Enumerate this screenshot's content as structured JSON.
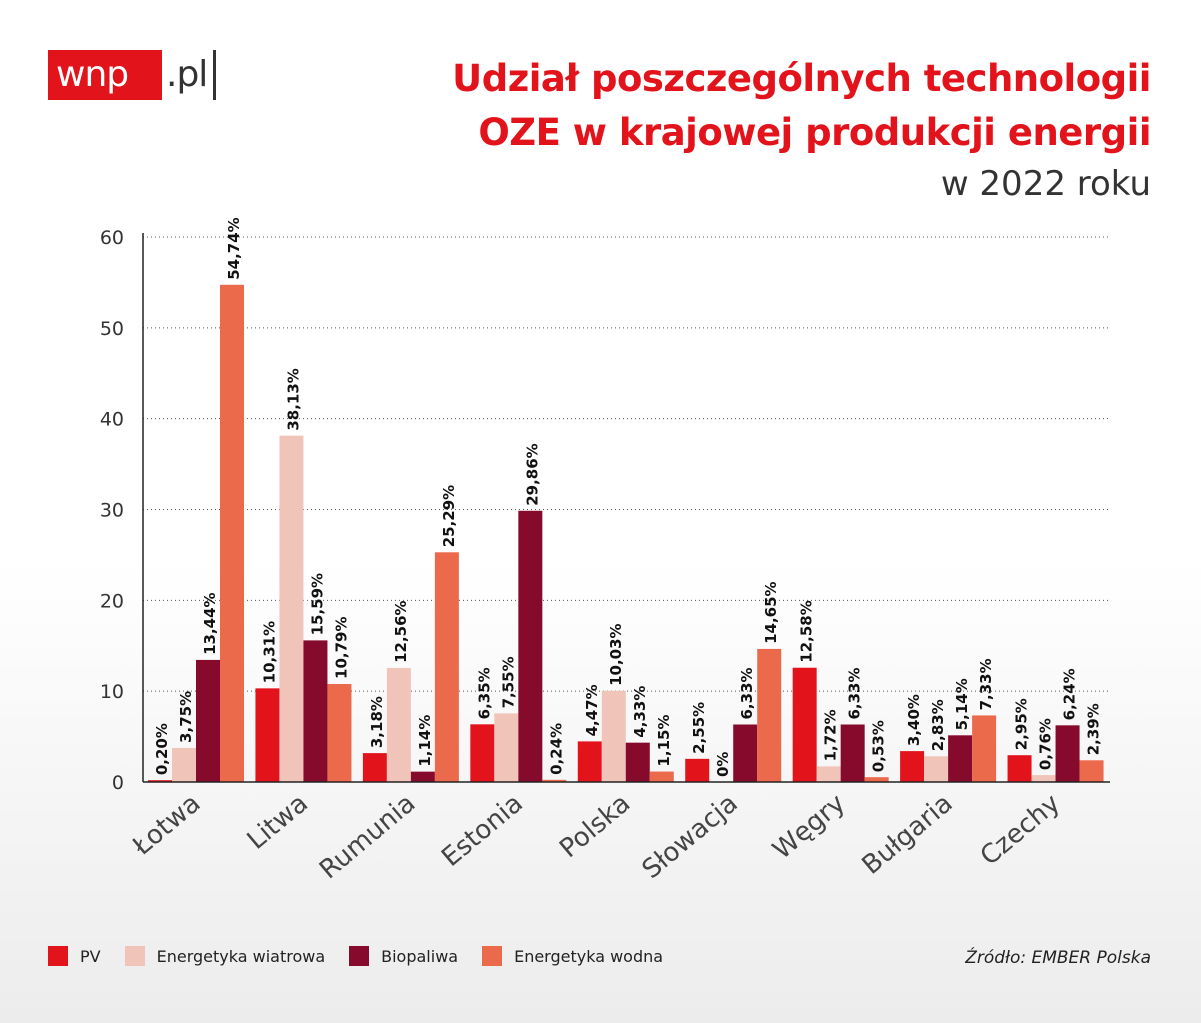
{
  "logo": {
    "brand": "wnp",
    "tld": ".pl"
  },
  "header": {
    "title_line1": "Udział poszczególnych technologii",
    "title_line2": "OZE w krajowej produkcji energii",
    "subtitle": "w 2022 roku"
  },
  "source": "Źródło: EMBER Polska",
  "colors": {
    "PV": "#e3131b",
    "Energetyka wiatrowa": "#f0c4b9",
    "Biopaliwa": "#850a2c",
    "Energetyka wodna": "#ec6a4c"
  },
  "chart_data": {
    "type": "bar",
    "categories": [
      "Łotwa",
      "Litwa",
      "Rumunia",
      "Estonia",
      "Polska",
      "Słowacja",
      "Węgry",
      "Bułgaria",
      "Czechy"
    ],
    "series": [
      {
        "name": "PV",
        "values": [
          0.2,
          10.31,
          3.18,
          6.35,
          4.47,
          2.55,
          12.58,
          3.4,
          2.95
        ],
        "labels": [
          "0,20%",
          "10,31%",
          "3,18%",
          "6,35%",
          "4,47%",
          "2,55%",
          "12,58%",
          "3,40%",
          "2,95%"
        ]
      },
      {
        "name": "Energetyka wiatrowa",
        "values": [
          3.75,
          38.13,
          12.56,
          7.55,
          10.03,
          0,
          1.72,
          2.83,
          0.76
        ],
        "labels": [
          "3,75%",
          "38,13%",
          "12,56%",
          "7,55%",
          "10,03%",
          "0%",
          "1,72%",
          "2,83%",
          "0,76%"
        ]
      },
      {
        "name": "Biopaliwa",
        "values": [
          13.44,
          15.59,
          1.14,
          29.86,
          4.33,
          6.33,
          6.33,
          5.14,
          6.24
        ],
        "labels": [
          "13,44%",
          "15,59%",
          "1,14%",
          "29,86%",
          "4,33%",
          "6,33%",
          "6,33%",
          "5,14%",
          "6,24%"
        ]
      },
      {
        "name": "Energetyka wodna",
        "values": [
          54.74,
          10.79,
          25.29,
          0.24,
          1.15,
          14.65,
          0.53,
          7.33,
          2.39
        ],
        "labels": [
          "54,74%",
          "10,79%",
          "25,29%",
          "0,24%",
          "1,15%",
          "14,65%",
          "0,53%",
          "7,33%",
          "2,39%"
        ]
      }
    ],
    "yticks": [
      "0",
      "10",
      "20",
      "30",
      "40",
      "50",
      "60"
    ],
    "ylim": [
      0,
      60
    ],
    "grid": "horizontal dotted",
    "legend": "bottom"
  }
}
